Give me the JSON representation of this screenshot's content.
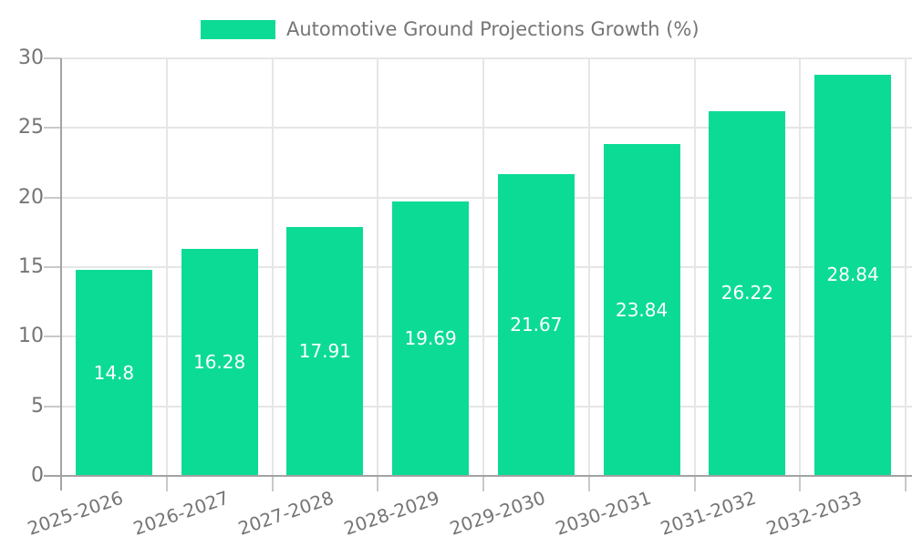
{
  "chart_data": {
    "type": "bar",
    "title": "Automotive Ground Projections Growth (%)",
    "categories": [
      "2025-2026",
      "2026-2027",
      "2027-2028",
      "2028-2029",
      "2029-2030",
      "2030-2031",
      "2031-2032",
      "2032-2033"
    ],
    "values": [
      14.8,
      16.28,
      17.91,
      19.69,
      21.67,
      23.84,
      26.22,
      28.84
    ],
    "yticks": [
      0,
      5,
      10,
      15,
      20,
      25,
      30
    ],
    "ylim": [
      0,
      30
    ],
    "xlabel": "",
    "ylabel": "",
    "grid": true,
    "legend_position": "top",
    "bar_color": "#0cdb96",
    "colors": {
      "bar": "#0cdb96",
      "grid": "#e6e6e6",
      "axis": "#a3a3a3",
      "tick": "#c9c9c9",
      "axis_text": "#757575",
      "value_text": "#ffffff",
      "background": "#ffffff"
    }
  }
}
